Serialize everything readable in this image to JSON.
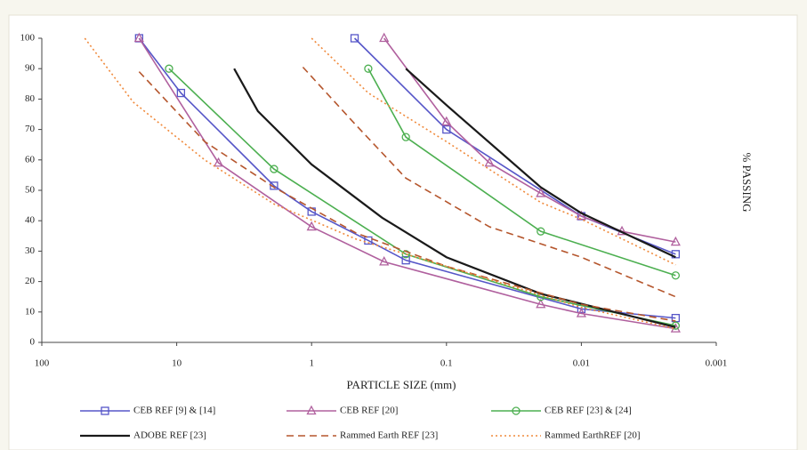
{
  "chart_data": {
    "type": "line",
    "x_label": "PARTICLE SIZE (mm)",
    "y_label": "% PASSING",
    "x_log": true,
    "xlim": [
      100,
      0.001
    ],
    "xticks": [
      100,
      10,
      1,
      0.1,
      0.01,
      0.001
    ],
    "ylim": [
      0,
      100
    ],
    "yticks": [
      0,
      10,
      20,
      30,
      40,
      50,
      60,
      70,
      80,
      90,
      100
    ],
    "series": [
      {
        "name": "CEB REF [9] & [14]",
        "color": "#5656c8",
        "marker": "square",
        "dash": "solid",
        "x": [
          19,
          9.3,
          1.9,
          1,
          0.38,
          0.2,
          0.01,
          0.002,
          null,
          0.48,
          0.1,
          0.01,
          0.002
        ],
        "values": [
          100,
          82,
          51.5,
          43,
          33.5,
          27,
          11,
          8,
          null,
          100,
          70,
          41.5,
          29
        ]
      },
      {
        "name": "CEB REF [20]",
        "color": "#b0609e",
        "marker": "triangle",
        "dash": "solid",
        "x": [
          19,
          4.9,
          1,
          0.29,
          0.02,
          0.01,
          0.002,
          null,
          0.29,
          0.1,
          0.048,
          0.02,
          0.01,
          0.005,
          0.002
        ],
        "values": [
          100,
          59,
          38,
          26.5,
          12.5,
          9.5,
          4.5,
          null,
          100,
          72.5,
          59,
          49,
          41.5,
          36.5,
          33
        ]
      },
      {
        "name": "CEB REF [23] & [24]",
        "color": "#4caf50",
        "marker": "circle",
        "dash": "solid",
        "x": [
          11.4,
          1.9,
          0.2,
          0.02,
          0.002,
          null,
          0.38,
          0.2,
          0.02,
          0.002
        ],
        "values": [
          90,
          57,
          29,
          15,
          5.5,
          null,
          90,
          67.5,
          36.5,
          22
        ]
      },
      {
        "name": "ADOBE REF [23]",
        "color": "#1a1a1a",
        "marker": "none",
        "dash": "solid",
        "x": [
          3.75,
          2.5,
          1,
          0.3,
          0.1,
          0.02,
          0.002,
          null,
          0.2,
          0.1,
          0.02,
          0.01,
          0.002
        ],
        "values": [
          90,
          76,
          58.5,
          41,
          28,
          16,
          5,
          null,
          90,
          78,
          51,
          42.5,
          28
        ]
      },
      {
        "name": "Rammed Earth REF [23]",
        "color": "#b5562d",
        "marker": "none",
        "dash": "dashed",
        "x": [
          19,
          6.2,
          1.9,
          0.47,
          0.1,
          0.01,
          0.002,
          null,
          1.16,
          0.47,
          0.2,
          0.048,
          0.01,
          0.002
        ],
        "values": [
          89,
          66,
          51,
          36,
          25,
          12.5,
          7,
          null,
          90.5,
          71.5,
          54,
          38,
          28,
          15
        ]
      },
      {
        "name": "Rammed EarthREF [20]",
        "color": "#f08a3c",
        "marker": "none",
        "dash": "dotted",
        "x": [
          48,
          21,
          6.2,
          1.9,
          0.47,
          0.1,
          0.01,
          0.002,
          null,
          1,
          0.38,
          0.1,
          0.02,
          0.01,
          0.002
        ],
        "values": [
          100,
          79,
          60,
          45.5,
          34,
          25,
          11.5,
          4.5,
          null,
          100,
          82,
          66,
          46,
          40.5,
          25.5
        ]
      }
    ]
  }
}
